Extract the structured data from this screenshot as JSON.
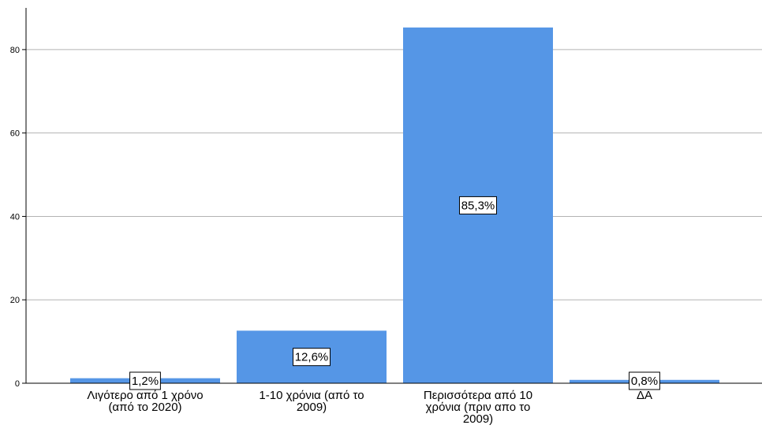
{
  "chart_data": {
    "type": "bar",
    "categories": [
      [
        "Λιγότερο από 1 χρόνο",
        "(από το 2020)"
      ],
      [
        "1-10 χρόνια (από το",
        "2009)"
      ],
      [
        "Περισσότερα από 10",
        "χρόνια (πριν απο το",
        "2009)"
      ],
      [
        "ΔΑ"
      ]
    ],
    "values": [
      1.2,
      12.6,
      85.3,
      0.8
    ],
    "data_labels": [
      "1,2%",
      "12,6%",
      "85,3%",
      "0,8%"
    ],
    "yticks": [
      0,
      20,
      40,
      60,
      80
    ],
    "ylim": [
      0,
      90
    ],
    "grid": true,
    "bar_color": "#5596e6",
    "title": "",
    "xlabel": "",
    "ylabel": ""
  }
}
